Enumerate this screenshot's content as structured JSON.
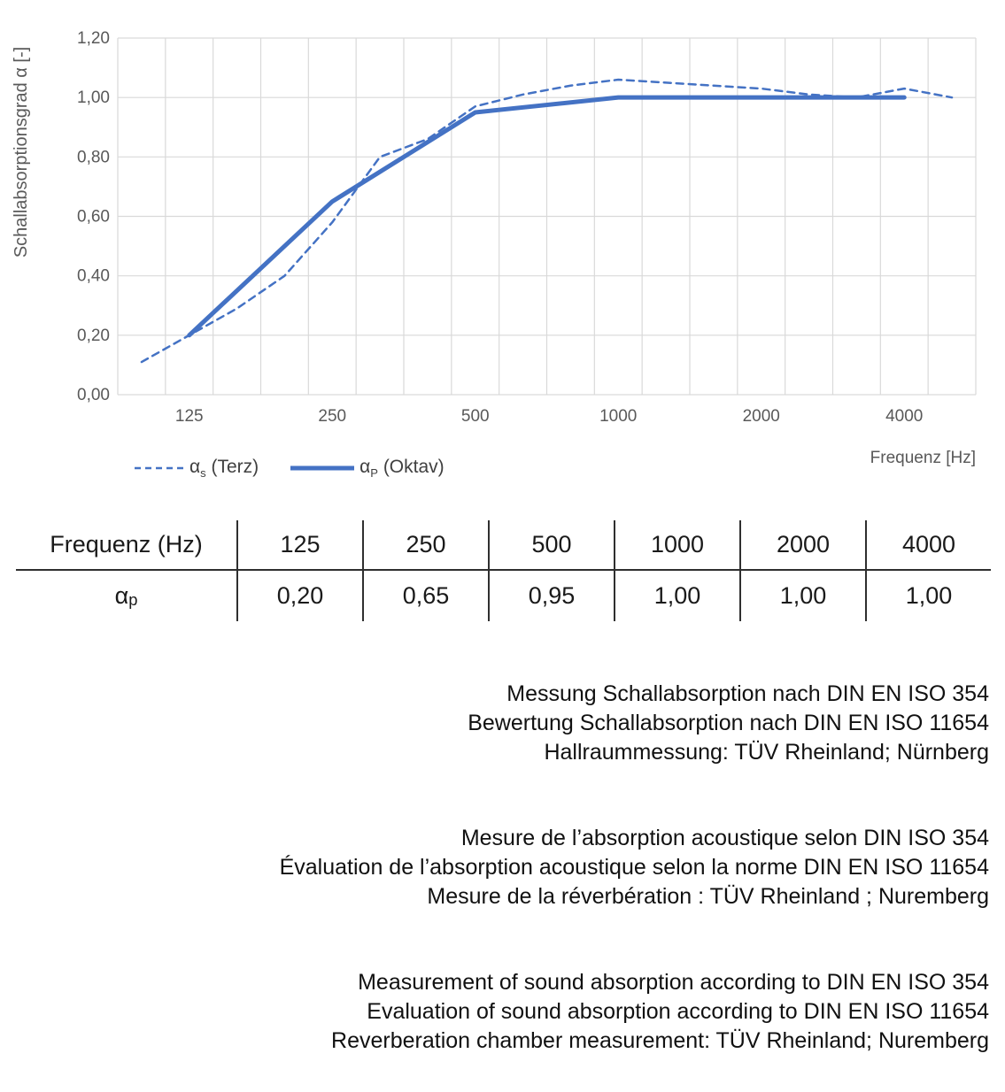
{
  "chart": {
    "y_axis_title": "Schallabsorptionsgrad α [-]",
    "x_axis_title": "Frequenz [Hz]",
    "colors": {
      "series_blue": "#4472C4",
      "gridline": "#D9D9D9",
      "axis_text": "#595959"
    },
    "legend": [
      {
        "symbol": "α",
        "sub": "s",
        "rest": " (Terz)",
        "style": "dashed"
      },
      {
        "symbol": "α",
        "sub": "P",
        "rest": " (Oktav)",
        "style": "solid"
      }
    ]
  },
  "chart_data": {
    "type": "line",
    "title": "",
    "xlabel": "Frequenz [Hz]",
    "ylabel": "Schallabsorptionsgrad α [-]",
    "x_scale": "third-octave band categories (logarithmic frequency)",
    "categories": [
      100,
      125,
      160,
      200,
      250,
      315,
      400,
      500,
      630,
      800,
      1000,
      1250,
      1600,
      2000,
      2500,
      3150,
      4000,
      5000
    ],
    "x_tick_labels": [
      "125",
      "250",
      "500",
      "1000",
      "2000",
      "4000"
    ],
    "y_ticks": [
      "0,00",
      "0,20",
      "0,40",
      "0,60",
      "0,80",
      "1,00",
      "1,20"
    ],
    "ylim": [
      0,
      1.2
    ],
    "grid": true,
    "legend_position": "bottom-left",
    "series": [
      {
        "name": "αs (Terz)",
        "style": "dashed",
        "x": [
          100,
          125,
          160,
          200,
          250,
          315,
          400,
          500,
          630,
          800,
          1000,
          1250,
          1600,
          2000,
          2500,
          3150,
          4000,
          5000
        ],
        "values": [
          0.11,
          0.2,
          0.29,
          0.4,
          0.58,
          0.8,
          0.86,
          0.97,
          1.01,
          1.04,
          1.06,
          1.05,
          1.04,
          1.03,
          1.01,
          1.0,
          1.03,
          1.0
        ]
      },
      {
        "name": "αP (Oktav)",
        "style": "solid",
        "x": [
          125,
          250,
          500,
          1000,
          2000,
          4000
        ],
        "values": [
          0.2,
          0.65,
          0.95,
          1.0,
          1.0,
          1.0
        ]
      }
    ]
  },
  "table": {
    "header": [
      "Frequenz (Hz)",
      "125",
      "250",
      "500",
      "1000",
      "2000",
      "4000"
    ],
    "row_label": {
      "symbol": "α",
      "sub": "p"
    },
    "values": [
      "0,20",
      "0,65",
      "0,95",
      "1,00",
      "1,00",
      "1,00"
    ]
  },
  "notes": {
    "german": [
      "Messung Schallabsorption nach DIN EN ISO 354",
      "Bewertung Schallabsorption nach DIN EN ISO 11654",
      "Hallraummessung: TÜV Rheinland; Nürnberg"
    ],
    "french": [
      "Mesure de l’absorption acoustique selon DIN ISO 354",
      "Évaluation de l’absorption acoustique selon la norme DIN EN ISO 11654",
      "Mesure de la réverbération : TÜV Rheinland ; Nuremberg"
    ],
    "english": [
      "Measurement of sound absorption according to DIN EN ISO 354",
      "Evaluation of sound absorption according to DIN EN ISO 11654",
      "Reverberation chamber measurement: TÜV Rheinland; Nuremberg"
    ]
  }
}
